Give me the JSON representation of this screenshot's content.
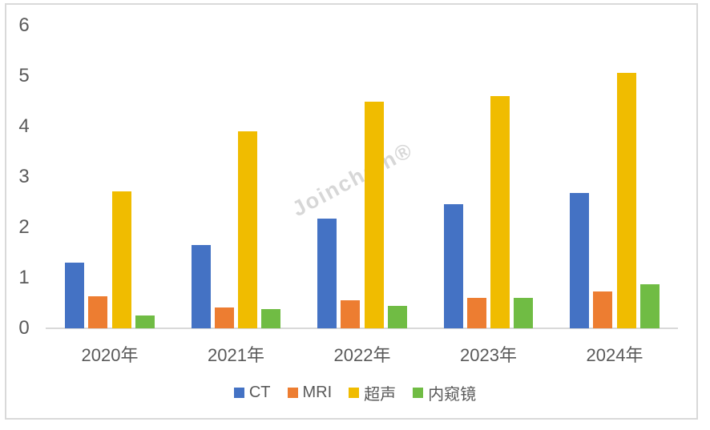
{
  "watermark": {
    "text": "Joinchain®"
  },
  "colors": {
    "ct": "#4472C4",
    "mri": "#ED7D31",
    "ultrasound": "#F0BC00",
    "endoscope": "#70BC44",
    "axis_line": "#d9d9d9",
    "label_text": "#595959"
  },
  "chart_data": {
    "type": "bar",
    "title": "",
    "xlabel": "",
    "ylabel": "",
    "categories": [
      "2020年",
      "2021年",
      "2022年",
      "2023年",
      "2024年"
    ],
    "series": [
      {
        "name": "CT",
        "color": "#4472C4",
        "values": [
          1.3,
          1.65,
          2.17,
          2.46,
          2.68
        ]
      },
      {
        "name": "MRI",
        "color": "#ED7D31",
        "values": [
          0.64,
          0.41,
          0.56,
          0.61,
          0.73
        ]
      },
      {
        "name": "超声",
        "color": "#F0BC00",
        "values": [
          2.72,
          3.91,
          4.49,
          4.61,
          5.07
        ]
      },
      {
        "name": "内窥镜",
        "color": "#70BC44",
        "values": [
          0.26,
          0.38,
          0.45,
          0.6,
          0.87
        ]
      }
    ],
    "ylim": [
      0,
      6
    ],
    "yticks": [
      0,
      1,
      2,
      3,
      4,
      5,
      6
    ],
    "grid": false,
    "legend_position": "bottom"
  }
}
